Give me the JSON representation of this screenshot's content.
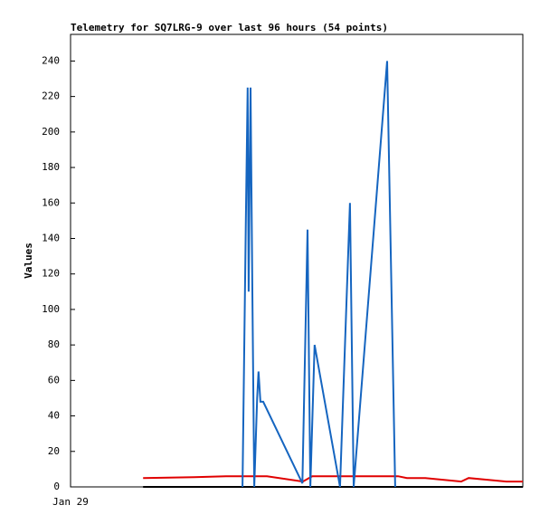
{
  "chart_data": {
    "type": "line",
    "title": "Telemetry for SQ7LRG-9 over last 96 hours (54 points)",
    "y_label": "Values",
    "xlim": [
      0,
      96
    ],
    "xticks": [
      {
        "value": 0,
        "label": "Jan 29"
      }
    ],
    "ylim": [
      0,
      255
    ],
    "yticks": [
      0,
      20,
      40,
      60,
      80,
      100,
      120,
      140,
      160,
      180,
      200,
      220,
      240
    ],
    "series": [
      {
        "color": "#000000",
        "x": [
          15.4,
          96
        ],
        "values": [
          0,
          0
        ]
      },
      {
        "color": "#e00000",
        "x": [
          15.4,
          26.3,
          33,
          41.7,
          49.3,
          51.3,
          69.5,
          71.4,
          75.3,
          82.9,
          84.5,
          88.7,
          92.5,
          96
        ],
        "values": [
          5,
          5.5,
          6,
          6,
          3,
          6,
          6,
          5,
          5,
          3,
          5,
          4,
          3,
          3
        ]
      },
      {
        "color": "#1565c0",
        "x": [
          36.5,
          37.2,
          37.6,
          37.8,
          38.0,
          38.2,
          38.6,
          39.0,
          39.6,
          39.9,
          40.3,
          40.9,
          49.2,
          50.3,
          50.9,
          51.8,
          57.2,
          59.3,
          60.1,
          67.2,
          68.9
        ],
        "values": [
          0,
          150,
          225,
          110,
          170,
          225,
          110,
          0,
          50,
          65,
          48,
          48,
          2,
          145,
          0,
          80,
          0,
          160,
          0,
          240,
          0
        ]
      }
    ]
  }
}
